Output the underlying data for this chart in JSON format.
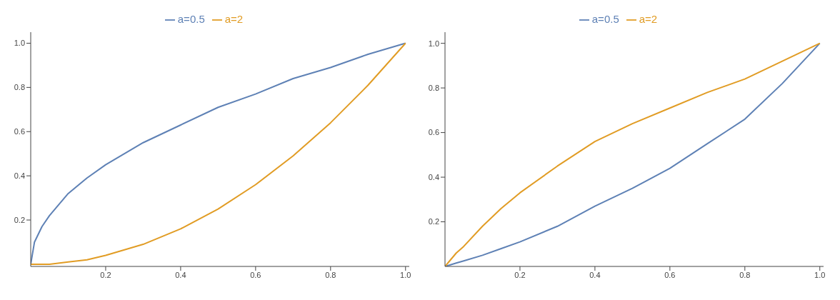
{
  "chart_data": [
    {
      "type": "line",
      "x": [
        0,
        0.01,
        0.03,
        0.05,
        0.1,
        0.15,
        0.2,
        0.3,
        0.4,
        0.5,
        0.6,
        0.7,
        0.8,
        0.9,
        1.0
      ],
      "series": [
        {
          "name": "a=0.5",
          "color": "#5e81b5",
          "values": [
            0,
            0.1,
            0.17,
            0.22,
            0.32,
            0.39,
            0.45,
            0.55,
            0.63,
            0.71,
            0.77,
            0.84,
            0.89,
            0.95,
            1.0
          ]
        },
        {
          "name": "a=2",
          "color": "#e19c24",
          "values": [
            0,
            0,
            0,
            0,
            0.01,
            0.02,
            0.04,
            0.09,
            0.16,
            0.25,
            0.36,
            0.49,
            0.64,
            0.81,
            1.0
          ]
        }
      ],
      "xlim": [
        0,
        1.01
      ],
      "xticks": [
        0.2,
        0.4,
        0.6,
        0.8,
        {
          "value": 1,
          "label": "1.0"
        }
      ],
      "ylim": [
        -0.01,
        1.05
      ],
      "yticks": [
        0.2,
        0.4,
        0.6,
        0.8,
        {
          "value": 1,
          "label": "1.0"
        }
      ],
      "legend": "top",
      "marker": "none",
      "line_style": "solid",
      "grid": false
    },
    {
      "type": "line",
      "x": [
        0,
        0.01,
        0.03,
        0.05,
        0.1,
        0.15,
        0.2,
        0.3,
        0.4,
        0.5,
        0.6,
        0.7,
        0.8,
        0.9,
        1.0
      ],
      "series": [
        {
          "name": "a=0.5",
          "color": "#5e81b5",
          "values": [
            0,
            0.005,
            0.015,
            0.025,
            0.05,
            0.08,
            0.11,
            0.18,
            0.27,
            0.35,
            0.44,
            0.55,
            0.66,
            0.82,
            1.0
          ]
        },
        {
          "name": "a=2",
          "color": "#e19c24",
          "values": [
            0,
            0.02,
            0.06,
            0.09,
            0.18,
            0.26,
            0.33,
            0.45,
            0.56,
            0.64,
            0.71,
            0.78,
            0.84,
            0.92,
            1.0
          ]
        }
      ],
      "xlim": [
        0,
        1.01
      ],
      "xticks": [
        0.2,
        0.4,
        0.6,
        0.8,
        {
          "value": 1,
          "label": "1.0"
        }
      ],
      "ylim": [
        0,
        1.05
      ],
      "yticks": [
        0.2,
        0.4,
        0.6,
        0.8,
        {
          "value": 1,
          "label": "1.0"
        }
      ],
      "legend": "top",
      "marker": "none",
      "line_style": "solid",
      "grid": false
    }
  ]
}
